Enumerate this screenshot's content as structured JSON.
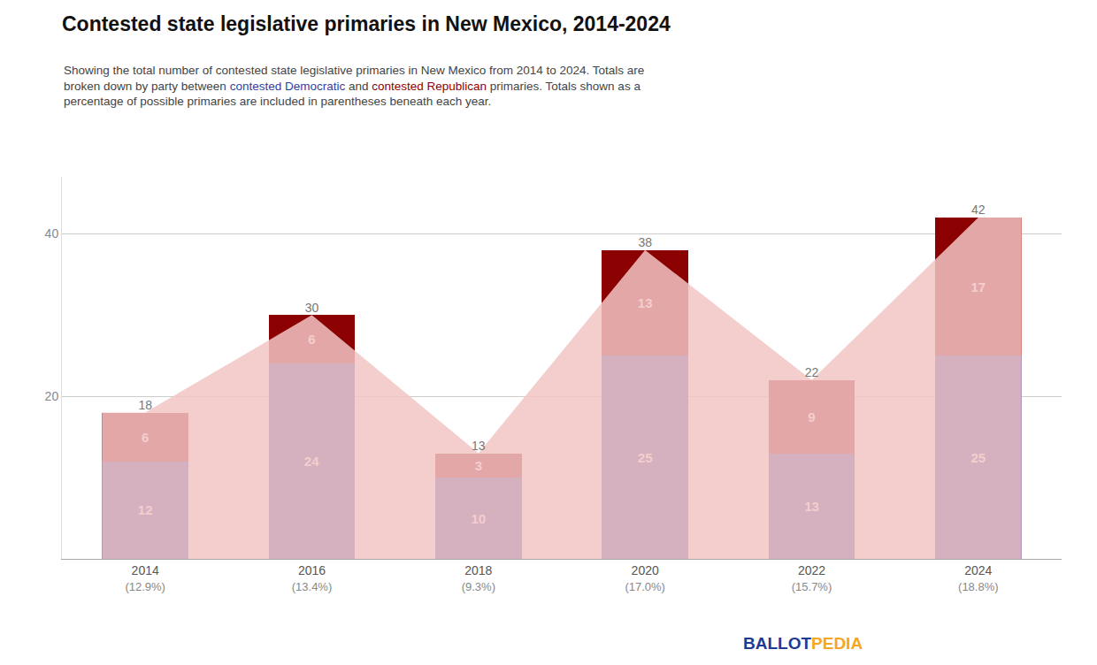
{
  "chart_data": {
    "type": "bar",
    "title": "Contested state legislative primaries in New Mexico, 2014-2024",
    "subtitle": [
      "Showing the total number of contested state legislative primaries in New Mexico from 2014 to 2024. Totals are",
      "broken down by party between contested Democratic and contested Republican primaries. Totals shown as a",
      "percentage of possible primaries are included in parentheses beneath each year."
    ],
    "categories": [
      2014,
      2016,
      2018,
      2020,
      2022,
      2024
    ],
    "percentages": [
      "(12.9%)",
      "(13.4%)",
      "(9.3%)",
      "(17.0%)",
      "(15.7%)",
      "(18.8%)"
    ],
    "series": [
      {
        "name": "contested Democratic",
        "color": "#2E3FA3",
        "values": [
          12,
          24,
          10,
          25,
          13,
          25
        ]
      },
      {
        "name": "contested Republican",
        "color": "#8B0000",
        "values": [
          6,
          6,
          3,
          13,
          9,
          17
        ]
      }
    ],
    "totals": [
      18,
      30,
      13,
      38,
      22,
      42
    ],
    "stacked": true,
    "data_labels": true,
    "ylim": [
      0,
      47
    ],
    "yticks": [
      20,
      40
    ],
    "grid": true,
    "logo": [
      {
        "text": "BALLOT",
        "color": "#1F3A93"
      },
      {
        "text": "PEDIA",
        "color": "#F5A623"
      }
    ]
  }
}
